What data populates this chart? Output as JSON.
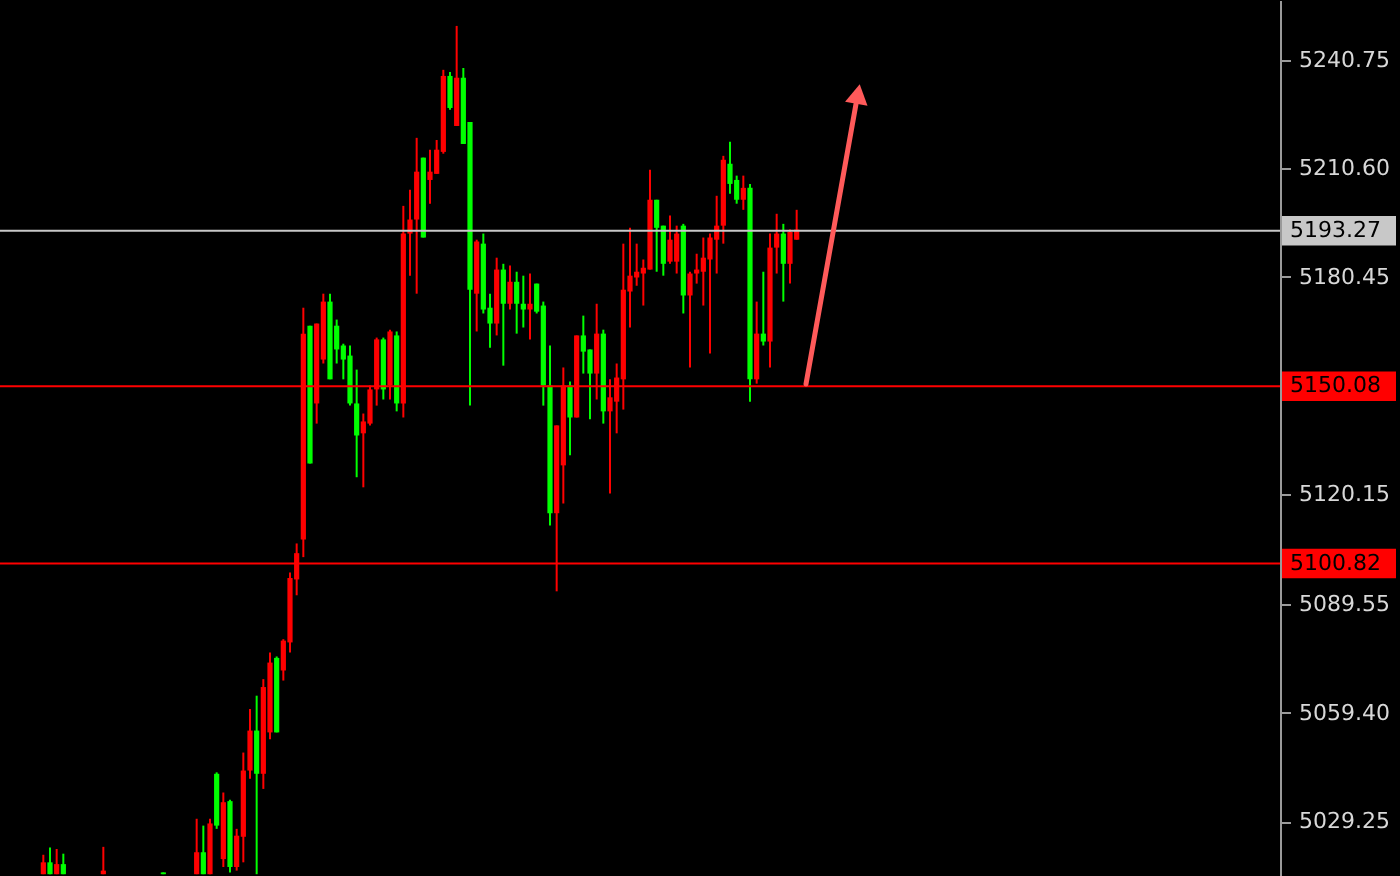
{
  "chart_data": {
    "type": "candlestick",
    "categories": [
      null,
      null,
      null,
      null,
      null,
      null,
      null,
      null,
      null,
      null,
      null,
      null,
      null,
      null,
      null,
      null,
      null,
      null,
      null,
      null,
      null,
      null,
      null,
      null,
      null,
      null,
      null,
      null,
      null,
      null,
      null,
      null,
      null,
      null,
      null,
      null,
      null,
      null,
      null,
      null,
      null,
      null,
      null,
      null,
      null,
      null,
      null,
      null,
      null,
      null,
      null,
      null,
      null,
      null,
      null,
      null,
      null,
      null,
      null,
      null,
      null,
      null,
      null,
      null,
      null,
      null,
      null,
      null,
      null,
      null,
      null,
      null,
      null,
      null,
      null,
      null,
      null,
      null,
      null,
      null,
      null,
      null,
      null,
      null,
      null,
      null,
      null,
      null,
      null,
      null,
      null,
      null,
      null,
      null,
      null,
      null,
      null,
      null,
      null,
      null,
      null,
      null,
      null,
      null,
      null,
      null,
      null,
      null,
      null,
      null,
      null,
      null,
      null,
      null,
      null,
      null,
      null,
      null,
      null,
      null,
      null,
      null,
      null,
      null,
      null,
      null,
      null,
      null,
      null,
      null,
      null,
      null,
      null,
      null,
      null,
      null,
      null,
      null,
      null,
      null,
      null,
      null,
      null,
      null,
      null,
      null,
      null,
      null,
      null,
      null,
      null,
      null,
      null,
      null,
      null,
      null,
      null,
      null,
      null,
      null,
      null,
      null,
      null,
      null,
      null,
      null,
      null,
      null,
      null,
      null,
      null,
      null,
      null,
      null,
      null,
      null,
      null,
      null,
      null,
      null,
      null,
      null,
      null,
      null,
      null,
      null,
      null,
      null,
      null,
      null,
      null,
      null
    ],
    "ohlc": [
      null,
      null,
      null,
      null,
      null,
      null,
      [
        5014.5,
        5019.9,
        5014.5,
        5017.8
      ],
      [
        5017.8,
        5021.9,
        5014.5,
        5014.5
      ],
      [
        5014.5,
        5021.5,
        5014.5,
        5017.3
      ],
      [
        5017.3,
        5020.2,
        5014.5,
        5014.5
      ],
      null,
      null,
      null,
      null,
      null,
      [
        5014.5,
        5022.1,
        5014.5,
        5015.5
      ],
      null,
      null,
      null,
      null,
      null,
      null,
      null,
      null,
      [
        5015.0,
        5015.0,
        5014.5,
        5014.5
      ],
      null,
      null,
      null,
      null,
      [
        5014.5,
        5029.9,
        5014.5,
        5020.6
      ],
      [
        5020.6,
        5028.0,
        5014.5,
        5014.5
      ],
      [
        5014.5,
        5029.9,
        5014.5,
        5028.6
      ],
      [
        5042.4,
        5042.8,
        5027.1,
        5028.0
      ],
      [
        5018.7,
        5037.2,
        5016.5,
        5034.5
      ],
      [
        5034.8,
        5035.2,
        5015.0,
        5016.5
      ],
      [
        5016.5,
        5027.1,
        5015.5,
        5025.2
      ],
      [
        5024.9,
        5048.3,
        5017.8,
        5043.3
      ],
      [
        5043.3,
        5060.4,
        5041.0,
        5054.4
      ],
      [
        5054.4,
        5064.1,
        5014.5,
        5042.4
      ],
      [
        5042.4,
        5068.7,
        5038.2,
        5066.5
      ],
      [
        5053.9,
        5076.1,
        5052.0,
        5073.3
      ],
      [
        5074.6,
        5075.0,
        5053.9,
        5053.9
      ],
      [
        5071.1,
        5079.8,
        5068.3,
        5079.4
      ],
      [
        5078.9,
        5098.3,
        5076.1,
        5096.8
      ],
      [
        5096.4,
        5106.4,
        5092.0,
        5103.7
      ],
      [
        5107.5,
        5171.9,
        5102.6,
        5164.7
      ],
      [
        5166.9,
        5166.9,
        5128.6,
        5128.6
      ],
      [
        5145.3,
        5167.5,
        5139.7,
        5167.5
      ],
      [
        5157.5,
        5175.8,
        5156.4,
        5173.6
      ],
      [
        5173.6,
        5175.8,
        5152.0,
        5152.0
      ],
      [
        5166.9,
        5168.6,
        5156.4,
        5160.3
      ],
      [
        5161.4,
        5161.9,
        5152.0,
        5157.5
      ],
      [
        5158.6,
        5161.4,
        5144.7,
        5145.3
      ],
      [
        5145.3,
        5154.7,
        5124.8,
        5136.4
      ],
      [
        5137.0,
        5142.5,
        5122.0,
        5140.3
      ],
      [
        5139.7,
        5150.3,
        5139.2,
        5149.2
      ],
      [
        5149.2,
        5163.6,
        5144.7,
        5163.1
      ],
      [
        5163.1,
        5163.6,
        5146.4,
        5149.2
      ],
      [
        5150.3,
        5165.8,
        5146.4,
        5165.3
      ],
      [
        5164.2,
        5165.3,
        5143.1,
        5145.3
      ],
      [
        5145.3,
        5200.2,
        5141.4,
        5192.5
      ],
      [
        5192.5,
        5204.7,
        5180.8,
        5196.4
      ],
      [
        5196.4,
        5219.1,
        5175.8,
        5209.7
      ],
      [
        5213.6,
        5213.6,
        5191.4,
        5191.4
      ],
      [
        5207.4,
        5215.8,
        5200.8,
        5209.7
      ],
      [
        5209.1,
        5218.5,
        5209.1,
        5215.8
      ],
      [
        5215.2,
        5238.0,
        5214.7,
        5236.3
      ],
      [
        5236.3,
        5237.4,
        5226.9,
        5227.4
      ],
      [
        5222.4,
        5250.2,
        5222.4,
        5235.8
      ],
      [
        5235.8,
        5238.5,
        5217.4,
        5217.4
      ],
      [
        5223.5,
        5223.5,
        5144.7,
        5176.9
      ],
      [
        5175.8,
        5190.8,
        5165.3,
        5190.3
      ],
      [
        5189.7,
        5192.5,
        5170.3,
        5171.4
      ],
      [
        5171.9,
        5175.8,
        5160.8,
        5167.5
      ],
      [
        5167.5,
        5185.8,
        5164.2,
        5182.5
      ],
      [
        5182.5,
        5184.1,
        5155.8,
        5173.0
      ],
      [
        5173.0,
        5183.6,
        5171.4,
        5179.1
      ],
      [
        5179.1,
        5181.9,
        5164.7,
        5173.0
      ],
      [
        5173.0,
        5180.8,
        5166.4,
        5171.4
      ],
      [
        5171.4,
        5181.4,
        5163.1,
        5173.0
      ],
      [
        5178.6,
        5178.6,
        5170.3,
        5170.8
      ],
      [
        5172.5,
        5173.6,
        5144.7,
        5150.3
      ],
      [
        5150.3,
        5161.4,
        5111.4,
        5114.8
      ],
      [
        5114.8,
        5139.2,
        5093.1,
        5139.2
      ],
      [
        5128.1,
        5155.3,
        5117.5,
        5150.3
      ],
      [
        5150.3,
        5151.4,
        5130.9,
        5141.4
      ],
      [
        5141.4,
        5164.2,
        5141.4,
        5164.2
      ],
      [
        5164.2,
        5169.7,
        5153.6,
        5159.7
      ],
      [
        5160.3,
        5160.3,
        5140.9,
        5153.6
      ],
      [
        5153.6,
        5173.0,
        5146.4,
        5164.7
      ],
      [
        5164.7,
        5165.8,
        5139.7,
        5143.1
      ],
      [
        5143.1,
        5152.0,
        5120.3,
        5147.0
      ],
      [
        5145.8,
        5156.4,
        5137.0,
        5152.5
      ],
      [
        5152.0,
        5189.7,
        5143.6,
        5176.9
      ],
      [
        5176.4,
        5194.1,
        5166.4,
        5180.8
      ],
      [
        5180.3,
        5189.7,
        5178.0,
        5181.9
      ],
      [
        5181.4,
        5185.3,
        5172.5,
        5183.0
      ],
      [
        5182.5,
        5210.2,
        5182.5,
        5201.9
      ],
      [
        5201.9,
        5201.9,
        5181.9,
        5194.1
      ],
      [
        5194.7,
        5194.7,
        5180.8,
        5184.1
      ],
      [
        5184.7,
        5197.5,
        5184.1,
        5190.8
      ],
      [
        5184.7,
        5194.7,
        5181.4,
        5192.5
      ],
      [
        5194.7,
        5195.2,
        5170.3,
        5175.3
      ],
      [
        5175.3,
        5181.9,
        5155.3,
        5181.4
      ],
      [
        5181.4,
        5186.9,
        5178.6,
        5182.5
      ],
      [
        5181.9,
        5191.4,
        5172.5,
        5185.8
      ],
      [
        5185.3,
        5192.5,
        5159.2,
        5191.4
      ],
      [
        5190.8,
        5203.0,
        5181.4,
        5194.7
      ],
      [
        5194.7,
        5214.1,
        5189.7,
        5213.0
      ],
      [
        5211.9,
        5218.0,
        5203.6,
        5206.3
      ],
      [
        5207.4,
        5208.6,
        5200.8,
        5201.9
      ],
      [
        5201.9,
        5208.6,
        5199.1,
        5205.2
      ],
      [
        5205.2,
        5206.3,
        5145.8,
        5152.0
      ],
      [
        5152.0,
        5173.6,
        5150.8,
        5164.7
      ],
      [
        5164.7,
        5181.9,
        5161.4,
        5162.5
      ],
      [
        5162.5,
        5192.5,
        5155.3,
        5188.6
      ],
      [
        5188.6,
        5198.0,
        5181.4,
        5192.5
      ],
      [
        5192.5,
        5195.2,
        5173.6,
        5184.1
      ],
      [
        5184.1,
        5193.6,
        5178.6,
        5193.0
      ],
      [
        5190.8,
        5199.1,
        5190.8,
        5193.6
      ],
      null,
      null,
      null,
      null,
      null,
      null,
      null,
      null,
      null,
      null,
      null,
      null,
      null,
      null,
      null,
      null,
      null,
      null,
      null,
      null,
      null,
      null,
      null,
      null,
      null,
      null,
      null,
      null,
      null,
      null,
      null,
      null,
      null,
      null,
      null,
      null,
      null,
      null,
      null,
      null,
      null,
      null,
      null,
      null,
      null,
      null,
      null,
      null,
      null,
      null,
      null,
      null,
      null,
      null,
      null,
      null,
      null,
      null,
      null,
      null,
      null,
      null,
      null,
      null,
      null,
      null,
      null,
      null,
      null,
      null,
      null,
      null
    ],
    "colors": [
      null,
      null,
      null,
      null,
      null,
      null,
      "#ff0000",
      "#00ff00",
      "#ff0000",
      "#00ff00",
      null,
      null,
      null,
      null,
      null,
      "#ff0000",
      null,
      null,
      null,
      null,
      null,
      null,
      null,
      null,
      "#00ff00",
      null,
      null,
      null,
      null,
      "#ff0000",
      "#00ff00",
      "#ff0000",
      "#00ff00",
      "#ff0000",
      "#00ff00",
      "#ff0000",
      "#ff0000",
      "#ff0000",
      "#00ff00",
      "#ff0000",
      "#ff0000",
      "#00ff00",
      "#ff0000",
      "#ff0000",
      "#ff0000",
      "#ff0000",
      "#00ff00",
      "#ff0000",
      "#ff0000",
      "#00ff00",
      "#00ff00",
      "#00ff00",
      "#00ff00",
      "#00ff00",
      "#ff0000",
      "#ff0000",
      "#ff0000",
      "#00ff00",
      "#ff0000",
      "#00ff00",
      "#ff0000",
      "#ff0000",
      "#ff0000",
      "#00ff00",
      "#ff0000",
      "#ff0000",
      "#ff0000",
      "#00ff00",
      "#ff0000",
      "#00ff00",
      "#00ff00",
      "#ff0000",
      "#00ff00",
      "#00ff00",
      "#ff0000",
      "#00ff00",
      "#ff0000",
      "#00ff00",
      "#00ff00",
      "#ff0000",
      "#00ff00",
      "#00ff00",
      "#00ff00",
      "#ff0000",
      "#ff0000",
      "#00ff00",
      "#ff0000",
      "#00ff00",
      "#00ff00",
      "#ff0000",
      "#00ff00",
      "#ff0000",
      "#ff0000",
      "#ff0000",
      "#ff0000",
      "#ff0000",
      "#ff0000",
      "#ff0000",
      "#00ff00",
      "#00ff00",
      "#ff0000",
      "#ff0000",
      "#00ff00",
      "#ff0000",
      "#ff0000",
      "#ff0000",
      "#ff0000",
      "#ff0000",
      "#ff0000",
      "#00ff00",
      "#00ff00",
      "#ff0000",
      "#00ff00",
      "#ff0000",
      "#00ff00",
      "#ff0000",
      "#ff0000",
      "#00ff00",
      "#ff0000",
      "#ff0000",
      null,
      null,
      null,
      null,
      null,
      null,
      null,
      null,
      null,
      null,
      null,
      null,
      null,
      null,
      null,
      null,
      null,
      null,
      null,
      null,
      null,
      null,
      null,
      null,
      null,
      null,
      null,
      null,
      null,
      null,
      null,
      null,
      null,
      null,
      null,
      null,
      null,
      null,
      null,
      null,
      null,
      null,
      null,
      null,
      null,
      null,
      null,
      null,
      null,
      null,
      null,
      null,
      null,
      null,
      null,
      null,
      null,
      null,
      null,
      null,
      null,
      null,
      null,
      null,
      null,
      null,
      null,
      null,
      null,
      null,
      null,
      null
    ],
    "ylim": [
      5014,
      5257.4
    ],
    "yticks": [
      {
        "value": 5240.75,
        "label": "5240.75"
      },
      {
        "value": 5210.6,
        "label": "5210.60"
      },
      {
        "value": 5180.45,
        "label": "5180.45"
      },
      {
        "value": 5120.15,
        "label": "5120.15"
      },
      {
        "value": 5089.55,
        "label": "5089.55"
      },
      {
        "value": 5059.4,
        "label": "5059.40"
      },
      {
        "value": 5029.25,
        "label": "5029.25"
      }
    ],
    "tick_labels": "y",
    "grid": false,
    "ref_lines": [
      {
        "axis": "y",
        "value": 5193.27,
        "label": "5193.27",
        "color": "#c8c8c8"
      },
      {
        "axis": "y",
        "value": 5150.08,
        "label": "5150.08",
        "color": "#ff0000"
      },
      {
        "axis": "y",
        "value": 5100.82,
        "label": "5100.82",
        "color": "#ff0000"
      }
    ]
  }
}
